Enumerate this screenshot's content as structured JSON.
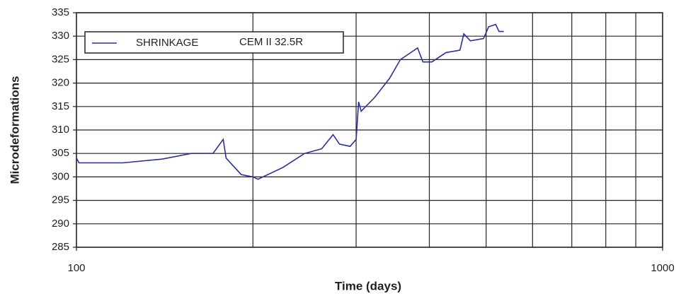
{
  "chart_data": {
    "type": "line",
    "xlabel": "Time (days)",
    "ylabel": "Microdeformations",
    "xscale": "log",
    "x": [
      100,
      101,
      120,
      140,
      157,
      171,
      178,
      180,
      191,
      200,
      204,
      225,
      245,
      262,
      274,
      281,
      293,
      300,
      303,
      306,
      323,
      342,
      357,
      382,
      390,
      404,
      427,
      451,
      458,
      470,
      495,
      505,
      519,
      526,
      536
    ],
    "series": [
      {
        "name": "SHRINKAGE",
        "color": "#2b2f9a",
        "values": [
          304,
          303,
          303,
          303.8,
          305,
          305,
          308,
          304,
          300.5,
          300,
          299.5,
          302,
          305,
          306,
          309,
          307,
          306.5,
          308,
          316,
          314,
          317,
          321,
          325,
          327.5,
          324.5,
          324.5,
          326.5,
          327,
          330.5,
          329,
          329.5,
          332,
          332.5,
          331,
          331
        ]
      }
    ],
    "annotation": "CEM II 32.5R",
    "xlim": [
      100,
      1000
    ],
    "xticks": [
      100,
      1000
    ],
    "xminorticks": [
      200,
      300,
      400,
      500,
      600,
      700,
      800,
      900
    ],
    "ylim": [
      285,
      335
    ],
    "yticks": [
      285,
      290,
      295,
      300,
      305,
      310,
      315,
      320,
      325,
      330,
      335
    ],
    "grid": true,
    "legend": "upper left"
  }
}
